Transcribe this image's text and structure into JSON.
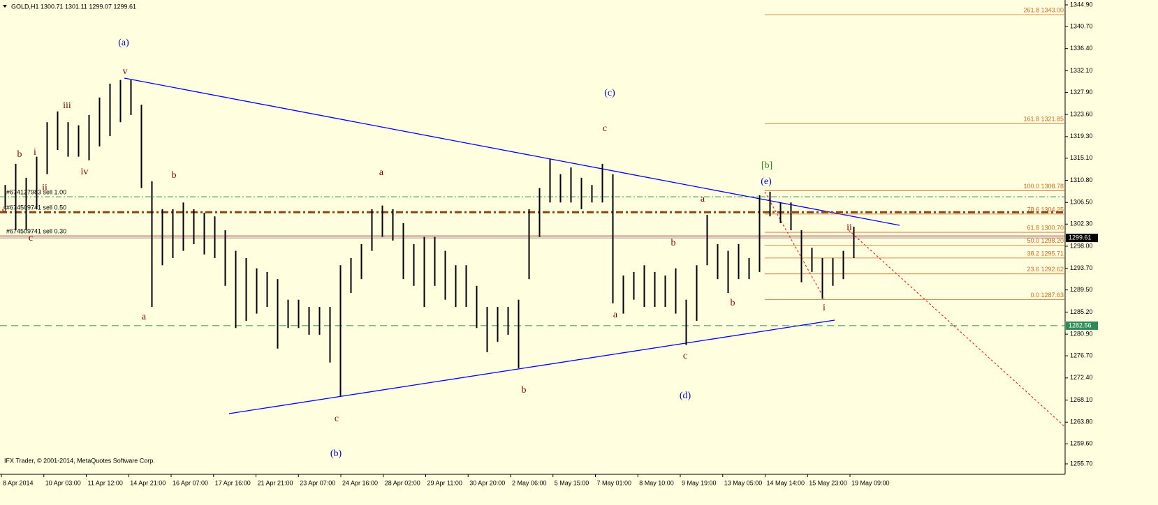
{
  "chart_data": {
    "type": "hl-bar",
    "header": "GOLD,H1  1300.71 1301.11 1299.07 1299.61",
    "footer": "IFX Trader, © 2001-2014, MetaQuotes Software Corp.",
    "bar_color": "#000000",
    "background": "#ffffe0",
    "ylim": [
      1253.67,
      1345.85
    ],
    "yticks": [
      {
        "value": 1344.9,
        "label": "1344.90"
      },
      {
        "value": 1340.7,
        "label": "1340.70"
      },
      {
        "value": 1336.4,
        "label": "1336.40"
      },
      {
        "value": 1332.1,
        "label": "1332.10"
      },
      {
        "value": 1327.9,
        "label": "1327.90"
      },
      {
        "value": 1323.6,
        "label": "1323.60"
      },
      {
        "value": 1319.3,
        "label": "1319.30"
      },
      {
        "value": 1315.1,
        "label": "1315.10"
      },
      {
        "value": 1310.8,
        "label": "1310.80"
      },
      {
        "value": 1306.5,
        "label": "1306.50"
      },
      {
        "value": 1302.3,
        "label": "1302.30"
      },
      {
        "value": 1298,
        "label": "1298.00"
      },
      {
        "value": 1293.7,
        "label": "1293.70"
      },
      {
        "value": 1289.5,
        "label": "1289.50"
      },
      {
        "value": 1285.2,
        "label": "1285.20"
      },
      {
        "value": 1280.9,
        "label": "1280.90"
      },
      {
        "value": 1276.7,
        "label": "1276.70"
      },
      {
        "value": 1272.4,
        "label": "1272.40"
      },
      {
        "value": 1268.1,
        "label": "1268.10"
      },
      {
        "value": 1263.8,
        "label": "1263.80"
      },
      {
        "value": 1259.6,
        "label": "1259.60"
      },
      {
        "value": 1255.7,
        "label": "1255.70"
      }
    ],
    "categories": [
      "8 Apr 2014",
      "10 Apr 03:00",
      "11 Apr 12:00",
      "14 Apr 21:00",
      "16 Apr 07:00",
      "17 Apr 16:00",
      "21 Apr 21:00",
      "23 Apr 07:00",
      "24 Apr 16:00",
      "28 Apr 02:00",
      "29 Apr 11:00",
      "30 Apr 20:00",
      "2 May 06:00",
      "5 May 15:00",
      "7 May 01:00",
      "8 May 10:00",
      "9 May 19:00",
      "13 May 05:00",
      "14 May 14:00",
      "15 May 23:00",
      "19 May 09:00"
    ],
    "high": [
      1309.9,
      1314.0,
      1311.3,
      1315.4,
      1322.1,
      1324.2,
      1322.1,
      1321.5,
      1323.5,
      1326.9,
      1329.6,
      1330.3,
      1330.3,
      1325.5,
      1310.6,
      1305.2,
      1305.2,
      1306.5,
      1305.2,
      1304.5,
      1303.8,
      1301.1,
      1297.1,
      1295.7,
      1293.7,
      1293.0,
      1291.6,
      1287.6,
      1287.6,
      1286.2,
      1286.2,
      1286.2,
      1294.3,
      1295.7,
      1298.4,
      1305.2,
      1305.9,
      1305.2,
      1302.5,
      1298.4,
      1299.8,
      1299.8,
      1297.1,
      1294.3,
      1294.3,
      1290.3,
      1286.2,
      1286.2,
      1286.2,
      1287.6,
      1305.2,
      1309.3,
      1314.9,
      1312.0,
      1313.3,
      1311.3,
      1309.9,
      1314.0,
      1312.0,
      1292.3,
      1293.0,
      1294.3,
      1293.0,
      1292.3,
      1293.7,
      1287.6,
      1294.3,
      1304.1,
      1298.4,
      1297.1,
      1298.4,
      1295.7,
      1307.9,
      1308.6,
      1306.5,
      1306.5,
      1301.1,
      1297.7,
      1295.7,
      1295.7,
      1297.1,
      1301.8
    ],
    "low": [
      1305.2,
      1301.1,
      1301.1,
      1305.2,
      1312.0,
      1316.7,
      1315.4,
      1315.4,
      1314.7,
      1317.4,
      1319.4,
      1322.1,
      1323.5,
      1309.3,
      1286.2,
      1294.3,
      1295.7,
      1297.1,
      1298.4,
      1296.4,
      1295.7,
      1290.3,
      1282.1,
      1283.5,
      1284.9,
      1286.2,
      1278.1,
      1282.1,
      1282.1,
      1280.8,
      1280.8,
      1275.4,
      1268.9,
      1288.9,
      1291.6,
      1297.1,
      1299.8,
      1299.1,
      1291.6,
      1290.3,
      1286.2,
      1290.3,
      1287.6,
      1286.2,
      1286.2,
      1282.1,
      1277.4,
      1279.4,
      1280.8,
      1274.3,
      1291.6,
      1299.8,
      1306.5,
      1306.5,
      1306.5,
      1305.2,
      1306.5,
      1306.5,
      1286.9,
      1284.9,
      1287.6,
      1286.2,
      1286.2,
      1286.2,
      1284.9,
      1278.8,
      1283.5,
      1294.3,
      1291.6,
      1288.9,
      1291.6,
      1291.6,
      1293.0,
      1303.8,
      1302.5,
      1301.1,
      1291.0,
      1293.0,
      1287.8,
      1290.3,
      1291.6,
      1295.7
    ],
    "levels": [
      {
        "value": 1307.6,
        "label": "#674127983 sell 1.00",
        "color": "#2e8b57"
      },
      {
        "value": 1304.6,
        "label": "#674509741 sell 0.50",
        "color": "#8b4513"
      },
      {
        "value": 1300.0,
        "label": "#674509741 sell 0.30",
        "color": "#b22222"
      }
    ],
    "support": {
      "value": 1282.56,
      "label": "1282.56",
      "color": "#2e8b57"
    },
    "current": {
      "value": 1299.61,
      "label": "1299.61",
      "color": "#000000"
    },
    "fib_color": "#d2691e",
    "fib": [
      {
        "value": 1343.0,
        "label": "261.8 1343.00"
      },
      {
        "value": 1321.85,
        "label": "161.8 1321.85"
      },
      {
        "value": 1308.78,
        "label": "100.0 1308.78"
      },
      {
        "value": 1304.25,
        "label": "78.6 1304.25"
      },
      {
        "value": 1300.7,
        "label": "61.8 1300.70"
      },
      {
        "value": 1298.2,
        "label": "50.0 1298.20"
      },
      {
        "value": 1295.71,
        "label": "38.2 1295.71"
      },
      {
        "value": 1292.62,
        "label": "23.6 1292.62"
      },
      {
        "value": 1287.63,
        "label": "0.0 1287.63"
      }
    ],
    "annotations": [
      {
        "text": "(a)",
        "color": "#0000cd"
      },
      {
        "text": "v",
        "color": "#8b0000"
      },
      {
        "text": "iii",
        "color": "#8b0000"
      },
      {
        "text": "i",
        "color": "#8b0000"
      },
      {
        "text": "b",
        "color": "#8b0000"
      },
      {
        "text": "iv",
        "color": "#8b0000"
      },
      {
        "text": "ii",
        "color": "#8b0000"
      },
      {
        "text": "a",
        "color": "#8b0000"
      },
      {
        "text": "c",
        "color": "#8b0000"
      },
      {
        "text": "b",
        "color": "#8b0000"
      },
      {
        "text": "a",
        "color": "#8b0000"
      },
      {
        "text": "a",
        "color": "#8b0000"
      },
      {
        "text": "c",
        "color": "#8b0000"
      },
      {
        "text": "(b)",
        "color": "#0000cd"
      },
      {
        "text": "b",
        "color": "#8b0000"
      },
      {
        "text": "(c)",
        "color": "#0000cd"
      },
      {
        "text": "c",
        "color": "#8b0000"
      },
      {
        "text": "a",
        "color": "#8b0000"
      },
      {
        "text": "b",
        "color": "#8b0000"
      },
      {
        "text": "c",
        "color": "#8b0000"
      },
      {
        "text": "(d)",
        "color": "#0000cd"
      },
      {
        "text": "a",
        "color": "#8b0000"
      },
      {
        "text": "b",
        "color": "#8b0000"
      },
      {
        "text": "[b]",
        "color": "#228b22"
      },
      {
        "text": "(e)",
        "color": "#0000cd"
      },
      {
        "text": "i",
        "color": "#8b0000"
      },
      {
        "text": "ii",
        "color": "#8b0000"
      }
    ]
  }
}
